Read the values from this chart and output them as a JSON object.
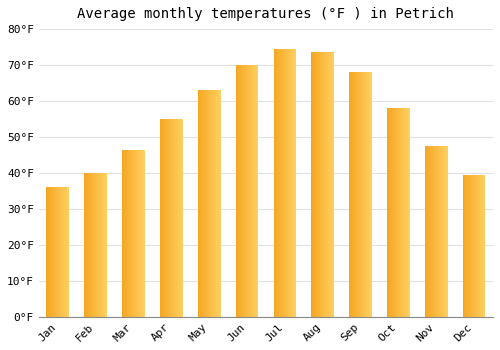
{
  "title": "Average monthly temperatures (°F ) in Petrich",
  "months": [
    "Jan",
    "Feb",
    "Mar",
    "Apr",
    "May",
    "Jun",
    "Jul",
    "Aug",
    "Sep",
    "Oct",
    "Nov",
    "Dec"
  ],
  "values": [
    36.0,
    40.0,
    46.5,
    55.0,
    63.0,
    70.0,
    74.5,
    73.5,
    68.0,
    58.0,
    47.5,
    39.5
  ],
  "bar_color_left": "#F5A623",
  "bar_color_right": "#FFD060",
  "ylim": [
    0,
    80
  ],
  "yticks": [
    0,
    10,
    20,
    30,
    40,
    50,
    60,
    70,
    80
  ],
  "ytick_labels": [
    "0°F",
    "10°F",
    "20°F",
    "30°F",
    "40°F",
    "50°F",
    "60°F",
    "70°F",
    "80°F"
  ],
  "background_color": "#ffffff",
  "plot_bg_color": "#ffffff",
  "grid_color": "#e0e0e0",
  "title_fontsize": 10,
  "tick_fontsize": 8,
  "bar_width": 0.6
}
